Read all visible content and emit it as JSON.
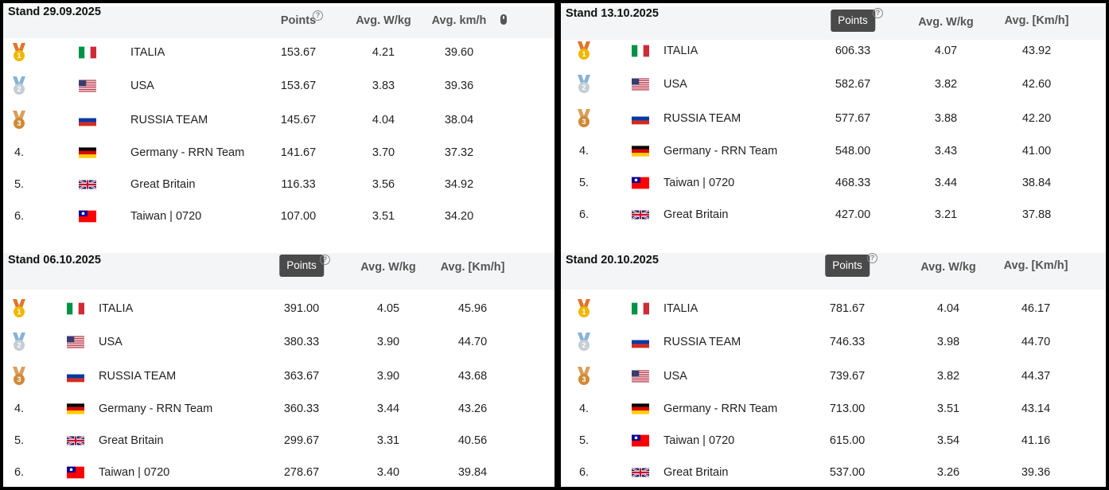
{
  "headers": {
    "points": "Points",
    "avg_wkg": "Avg. W/kg",
    "avg_kmh_lower": "Avg. km/h",
    "avg_kmh_bracket": "Avg. [Km/h]"
  },
  "stands": [
    {
      "title": "Stand 29.09.2025",
      "points_style": "text",
      "speed_header": "Avg. km/h",
      "rows": [
        {
          "rank": "1.",
          "medal": "gold",
          "flag": "it-flag",
          "team": "ITALIA",
          "points": "153.67",
          "wkg": "4.21",
          "kmh": "39.60"
        },
        {
          "rank": "2.",
          "medal": "silver",
          "flag": "us-flag",
          "team": "USA",
          "points": "153.67",
          "wkg": "3.83",
          "kmh": "39.36"
        },
        {
          "rank": "3.",
          "medal": "bronze",
          "flag": "ru-flag",
          "team": "RUSSIA TEAM",
          "points": "145.67",
          "wkg": "4.04",
          "kmh": "38.04"
        },
        {
          "rank": "4.",
          "medal": "",
          "flag": "de-flag",
          "team": "Germany - RRN Team",
          "points": "141.67",
          "wkg": "3.70",
          "kmh": "37.32"
        },
        {
          "rank": "5.",
          "medal": "",
          "flag": "gb-flag",
          "team": "Great Britain",
          "points": "116.33",
          "wkg": "3.56",
          "kmh": "34.92"
        },
        {
          "rank": "6.",
          "medal": "",
          "flag": "tw-flag",
          "team": "Taiwan | 0720",
          "points": "107.00",
          "wkg": "3.51",
          "kmh": "34.20"
        }
      ]
    },
    {
      "title": "Stand 06.10.2025",
      "points_style": "pill",
      "speed_header": "Avg. [Km/h]",
      "rows": [
        {
          "rank": "1.",
          "medal": "gold",
          "flag": "it-flag",
          "team": "ITALIA",
          "points": "391.00",
          "wkg": "4.05",
          "kmh": "45.96"
        },
        {
          "rank": "2.",
          "medal": "silver",
          "flag": "us-flag",
          "team": "USA",
          "points": "380.33",
          "wkg": "3.90",
          "kmh": "44.70"
        },
        {
          "rank": "3.",
          "medal": "bronze",
          "flag": "ru-flag",
          "team": "RUSSIA TEAM",
          "points": "363.67",
          "wkg": "3.90",
          "kmh": "43.68"
        },
        {
          "rank": "4.",
          "medal": "",
          "flag": "de-flag",
          "team": "Germany - RRN Team",
          "points": "360.33",
          "wkg": "3.44",
          "kmh": "43.26"
        },
        {
          "rank": "5.",
          "medal": "",
          "flag": "gb-flag",
          "team": "Great Britain",
          "points": "299.67",
          "wkg": "3.31",
          "kmh": "40.56"
        },
        {
          "rank": "6.",
          "medal": "",
          "flag": "tw-flag",
          "team": "Taiwan | 0720",
          "points": "278.67",
          "wkg": "3.40",
          "kmh": "39.84"
        }
      ]
    },
    {
      "title": "Stand 13.10.2025",
      "points_style": "pill",
      "speed_header": "Avg. [Km/h]",
      "rows": [
        {
          "rank": "1.",
          "medal": "gold",
          "flag": "it-flag",
          "team": "ITALIA",
          "points": "606.33",
          "wkg": "4.07",
          "kmh": "43.92"
        },
        {
          "rank": "2.",
          "medal": "silver",
          "flag": "us-flag",
          "team": "USA",
          "points": "582.67",
          "wkg": "3.82",
          "kmh": "42.60"
        },
        {
          "rank": "3.",
          "medal": "bronze",
          "flag": "ru-flag",
          "team": "RUSSIA TEAM",
          "points": "577.67",
          "wkg": "3.88",
          "kmh": "42.20"
        },
        {
          "rank": "4.",
          "medal": "",
          "flag": "de-flag",
          "team": "Germany - RRN Team",
          "points": "548.00",
          "wkg": "3.43",
          "kmh": "41.00"
        },
        {
          "rank": "5.",
          "medal": "",
          "flag": "tw-flag",
          "team": "Taiwan | 0720",
          "points": "468.33",
          "wkg": "3.44",
          "kmh": "38.84"
        },
        {
          "rank": "6.",
          "medal": "",
          "flag": "gb-flag",
          "team": "Great Britain",
          "points": "427.00",
          "wkg": "3.21",
          "kmh": "37.88"
        }
      ]
    },
    {
      "title": "Stand 20.10.2025",
      "points_style": "pill",
      "speed_header": "Avg. [Km/h]",
      "rows": [
        {
          "rank": "1.",
          "medal": "gold",
          "flag": "it-flag",
          "team": "ITALIA",
          "points": "781.67",
          "wkg": "4.04",
          "kmh": "46.17"
        },
        {
          "rank": "2.",
          "medal": "silver",
          "flag": "ru-flag",
          "team": "RUSSIA TEAM",
          "points": "746.33",
          "wkg": "3.98",
          "kmh": "44.70"
        },
        {
          "rank": "3.",
          "medal": "bronze",
          "flag": "us-flag",
          "team": "USA",
          "points": "739.67",
          "wkg": "3.82",
          "kmh": "44.37"
        },
        {
          "rank": "4.",
          "medal": "",
          "flag": "de-flag",
          "team": "Germany - RRN Team",
          "points": "713.00",
          "wkg": "3.51",
          "kmh": "43.14"
        },
        {
          "rank": "5.",
          "medal": "",
          "flag": "tw-flag",
          "team": "Taiwan | 0720",
          "points": "615.00",
          "wkg": "3.54",
          "kmh": "41.16"
        },
        {
          "rank": "6.",
          "medal": "",
          "flag": "gb-flag",
          "team": "Great Britain",
          "points": "537.00",
          "wkg": "3.26",
          "kmh": "39.36"
        }
      ]
    }
  ]
}
